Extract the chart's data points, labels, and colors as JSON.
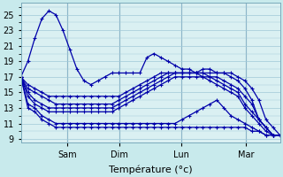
{
  "title": "",
  "xlabel": "Température (°c)",
  "ylabel": "",
  "bg_color": "#c8eaec",
  "plot_bg_color": "#daf0f2",
  "grid_color": "#a0c8d8",
  "line_color": "#0000aa",
  "marker": "+",
  "ylim": [
    8.5,
    26.5
  ],
  "yticks": [
    9,
    11,
    13,
    15,
    17,
    19,
    21,
    23,
    25
  ],
  "day_positions": [
    0.18,
    0.38,
    0.62,
    0.87
  ],
  "day_labels": [
    "Sam",
    "Dim",
    "Lun",
    "Mar"
  ],
  "series": [
    [
      17.0,
      19.0,
      22.0,
      24.5,
      25.5,
      25.0,
      23.0,
      20.5,
      18.0,
      16.5,
      16.0,
      16.5,
      17.0,
      17.5,
      17.5,
      17.5,
      17.5,
      17.5,
      19.5,
      20.0,
      19.5,
      19.0,
      18.5,
      18.0,
      18.0,
      17.5,
      18.0,
      18.0,
      17.5,
      17.5,
      17.5,
      17.0,
      16.5,
      15.5,
      14.0,
      11.5,
      10.5,
      9.5
    ],
    [
      17.0,
      16.0,
      15.5,
      15.0,
      14.5,
      14.5,
      14.5,
      14.5,
      14.5,
      14.5,
      14.5,
      14.5,
      14.5,
      14.5,
      14.5,
      15.0,
      15.5,
      16.0,
      16.5,
      17.0,
      17.5,
      17.5,
      17.5,
      17.5,
      17.5,
      17.5,
      17.5,
      17.5,
      17.5,
      17.5,
      17.0,
      16.5,
      15.5,
      14.0,
      11.5,
      10.5,
      9.5,
      9.5
    ],
    [
      17.0,
      15.5,
      15.0,
      14.5,
      14.0,
      13.5,
      13.5,
      13.5,
      13.5,
      13.5,
      13.5,
      13.5,
      13.5,
      13.5,
      14.0,
      14.5,
      15.0,
      15.5,
      16.0,
      16.5,
      17.0,
      17.5,
      17.5,
      17.5,
      17.5,
      17.5,
      17.5,
      17.0,
      17.0,
      16.5,
      16.0,
      15.5,
      14.5,
      13.5,
      11.5,
      10.5,
      9.5,
      9.5
    ],
    [
      17.0,
      15.0,
      14.0,
      13.5,
      13.0,
      13.0,
      13.0,
      13.0,
      13.0,
      13.0,
      13.0,
      13.0,
      13.0,
      13.0,
      13.5,
      14.0,
      14.5,
      15.0,
      15.5,
      16.0,
      16.5,
      17.0,
      17.5,
      17.5,
      17.5,
      17.5,
      17.0,
      17.0,
      16.5,
      16.0,
      15.5,
      15.0,
      13.5,
      12.5,
      11.5,
      10.5,
      9.5,
      9.5
    ],
    [
      17.0,
      14.5,
      13.5,
      13.0,
      12.5,
      12.5,
      12.5,
      12.5,
      12.5,
      12.5,
      12.5,
      12.5,
      12.5,
      12.5,
      13.0,
      13.5,
      14.0,
      14.5,
      15.0,
      15.5,
      16.0,
      16.5,
      17.0,
      17.0,
      17.0,
      17.0,
      17.0,
      16.5,
      16.0,
      15.5,
      15.0,
      14.5,
      13.0,
      12.0,
      11.0,
      10.0,
      9.5,
      9.5
    ],
    [
      17.0,
      13.5,
      13.0,
      12.0,
      11.5,
      11.0,
      11.0,
      11.0,
      11.0,
      11.0,
      11.0,
      11.0,
      11.0,
      11.0,
      11.0,
      11.0,
      11.0,
      11.0,
      11.0,
      11.0,
      11.0,
      11.0,
      11.0,
      11.5,
      12.0,
      12.5,
      13.0,
      13.5,
      14.0,
      13.0,
      12.0,
      11.5,
      11.0,
      10.5,
      10.0,
      9.5,
      9.5,
      9.5
    ],
    [
      17.0,
      13.0,
      12.5,
      11.5,
      11.0,
      10.5,
      10.5,
      10.5,
      10.5,
      10.5,
      10.5,
      10.5,
      10.5,
      10.5,
      10.5,
      10.5,
      10.5,
      10.5,
      10.5,
      10.5,
      10.5,
      10.5,
      10.5,
      10.5,
      10.5,
      10.5,
      10.5,
      10.5,
      10.5,
      10.5,
      10.5,
      10.5,
      10.5,
      10.0,
      10.0,
      9.5,
      9.5,
      9.5
    ]
  ]
}
